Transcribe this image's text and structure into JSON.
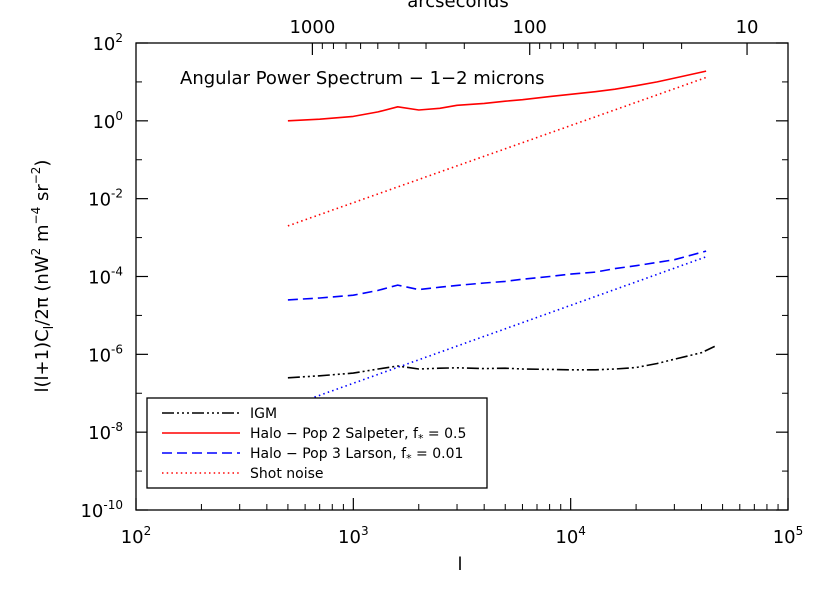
{
  "chart_data": {
    "type": "line",
    "title": "Angular Power Spectrum − 1−2 microns",
    "xlabel": "l",
    "ylabel": "l(l+1)C_l/2π (nW² m⁻⁴ sr⁻²)",
    "top_xlabel": "arcseconds",
    "xscale": "log",
    "yscale": "log",
    "xlim": [
      100,
      100000
    ],
    "ylim": [
      1e-10,
      100
    ],
    "x_ticks": [
      {
        "value": 100,
        "base": "10",
        "exp": "2"
      },
      {
        "value": 1000,
        "base": "10",
        "exp": "3"
      },
      {
        "value": 10000,
        "base": "10",
        "exp": "4"
      },
      {
        "value": 100000,
        "base": "10",
        "exp": "5"
      }
    ],
    "y_ticks": [
      {
        "value": 100,
        "base": "10",
        "exp": "2"
      },
      {
        "value": 1,
        "base": "10",
        "exp": "0"
      },
      {
        "value": 0.01,
        "base": "10",
        "exp": "-2"
      },
      {
        "value": 0.0001,
        "base": "10",
        "exp": "-4"
      },
      {
        "value": 1e-06,
        "base": "10",
        "exp": "-6"
      },
      {
        "value": 1e-08,
        "base": "10",
        "exp": "-8"
      },
      {
        "value": 1e-10,
        "base": "10",
        "exp": "-10"
      }
    ],
    "top_ticks": [
      {
        "arcsec": 1000,
        "label": "1000"
      },
      {
        "arcsec": 100,
        "label": "100"
      },
      {
        "arcsec": 10,
        "label": "10"
      }
    ],
    "top_minor_ticks": [
      900,
      800,
      700,
      600,
      500,
      400,
      300,
      200,
      90,
      80,
      70,
      60,
      50,
      40,
      30,
      20
    ],
    "top_axis_l_per_arcsec_factor": 648000,
    "legend": {
      "position": "bottom-left",
      "entries": [
        {
          "label": "IGM",
          "series": 0
        },
        {
          "label": "Halo − Pop 2 Salpeter, f",
          "sub": "*",
          "suffix": " = 0.5",
          "series": 1
        },
        {
          "label": "Halo − Pop 3 Larson, f",
          "sub": "*",
          "suffix": " = 0.01",
          "series": 3
        },
        {
          "label": "Shot noise",
          "series": 2
        }
      ]
    },
    "series": [
      {
        "color": "#000000",
        "dash": "dashdotdotdot",
        "x": [
          500,
          700,
          1000,
          1300,
          1600,
          2000,
          2500,
          3000,
          4000,
          5000,
          6000,
          8000,
          10000,
          13000,
          16000,
          20000,
          25000,
          30000,
          40000,
          46000
        ],
        "y": [
          2.5e-07,
          2.8e-07,
          3.3e-07,
          4.2e-07,
          5e-07,
          4.2e-07,
          4.4e-07,
          4.5e-07,
          4.3e-07,
          4.4e-07,
          4.2e-07,
          4.1e-07,
          4e-07,
          4e-07,
          4.2e-07,
          4.6e-07,
          5.8e-07,
          7.5e-07,
          1.1e-06,
          1.6e-06
        ]
      },
      {
        "color": "#ff0000",
        "dash": "solid",
        "x": [
          500,
          700,
          1000,
          1300,
          1600,
          2000,
          2500,
          3000,
          4000,
          5000,
          6000,
          8000,
          10000,
          13000,
          16000,
          20000,
          25000,
          30000,
          42000
        ],
        "y": [
          1.0,
          1.1,
          1.3,
          1.7,
          2.3,
          1.9,
          2.1,
          2.5,
          2.8,
          3.2,
          3.5,
          4.2,
          4.8,
          5.6,
          6.5,
          8.0,
          10.0,
          12.5,
          19.0
        ]
      },
      {
        "color": "#ff0000",
        "dash": "dotted",
        "x": [
          500,
          42000
        ],
        "y": [
          0.002,
          13.0
        ]
      },
      {
        "color": "#0000ff",
        "dash": "dashed",
        "x": [
          500,
          700,
          1000,
          1300,
          1600,
          2000,
          2500,
          3000,
          4000,
          5000,
          6000,
          8000,
          10000,
          13000,
          16000,
          20000,
          25000,
          30000,
          42000
        ],
        "y": [
          2.5e-05,
          2.8e-05,
          3.3e-05,
          4.4e-05,
          6e-05,
          4.6e-05,
          5.3e-05,
          5.9e-05,
          6.8e-05,
          7.5e-05,
          8.5e-05,
          0.0001,
          0.000115,
          0.00013,
          0.00016,
          0.00019,
          0.00023,
          0.00027,
          0.00045
        ]
      },
      {
        "color": "#0000ff",
        "dash": "dotted",
        "x": [
          500,
          42000
        ],
        "y": [
          4.5e-08,
          0.00032
        ]
      }
    ]
  }
}
